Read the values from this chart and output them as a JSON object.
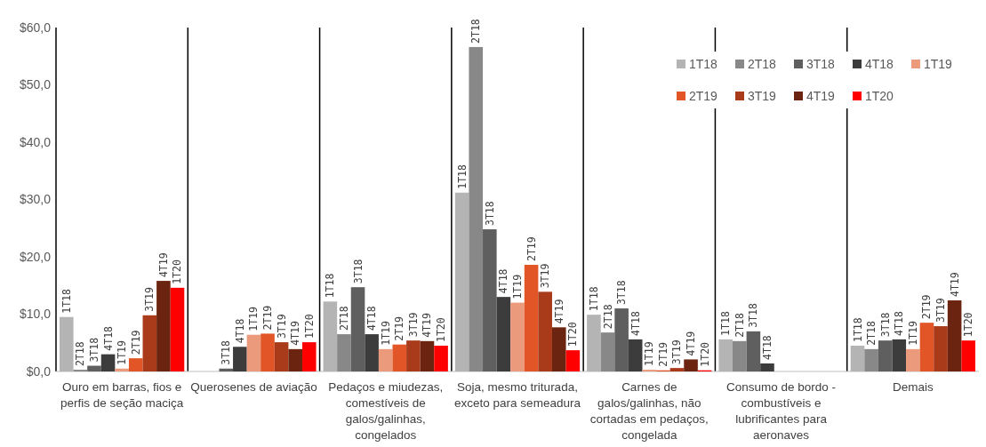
{
  "chart_data": {
    "type": "bar",
    "categories": [
      "Ouro em barras, fios e perfis de seção maciça",
      "Querosenes de aviação",
      "Pedaços e miudezas, comestíveis de galos/galinhas, congelados",
      "Soja, mesmo triturada, exceto para semeadura",
      "Carnes de galos/galinhas, não cortadas em pedaços, congelada",
      "Consumo de bordo - combustíveis e lubrificantes para aeronaves",
      "Demais"
    ],
    "series": [
      {
        "name": "1T18",
        "color": "#b4b4b4",
        "values": [
          9.5,
          null,
          12.2,
          31.2,
          9.9,
          5.6,
          4.5
        ]
      },
      {
        "name": "2T18",
        "color": "#888888",
        "values": [
          0.3,
          null,
          6.5,
          56.6,
          6.8,
          5.3,
          3.9
        ]
      },
      {
        "name": "3T18",
        "color": "#5f5f5f",
        "values": [
          1.0,
          0.5,
          14.7,
          24.8,
          11.0,
          7.0,
          5.4
        ]
      },
      {
        "name": "4T18",
        "color": "#3c3c3c",
        "values": [
          3.0,
          4.3,
          6.5,
          13.0,
          5.6,
          1.4,
          5.6
        ]
      },
      {
        "name": "1T19",
        "color": "#ec9a7c",
        "values": [
          0.5,
          6.4,
          3.9,
          12.0,
          0.3,
          null,
          3.9
        ]
      },
      {
        "name": "2T19",
        "color": "#e15526",
        "values": [
          2.3,
          6.6,
          4.7,
          18.6,
          0.2,
          null,
          8.5
        ]
      },
      {
        "name": "3T19",
        "color": "#a93a1a",
        "values": [
          9.8,
          5.1,
          5.4,
          13.9,
          0.6,
          null,
          7.9
        ]
      },
      {
        "name": "4T19",
        "color": "#6b2410",
        "values": [
          15.8,
          3.9,
          5.3,
          7.7,
          2.1,
          null,
          12.4
        ]
      },
      {
        "name": "1T20",
        "color": "#ff0000",
        "values": [
          14.6,
          5.1,
          4.5,
          3.7,
          0.2,
          null,
          5.4
        ]
      }
    ],
    "ylim": [
      0,
      60
    ],
    "yticks": [
      {
        "value": 0,
        "label": "$0,0"
      },
      {
        "value": 10,
        "label": "$10,0"
      },
      {
        "value": 20,
        "label": "$20,0"
      },
      {
        "value": 30,
        "label": "$30,0"
      },
      {
        "value": 40,
        "label": "$40,0"
      },
      {
        "value": 50,
        "label": "$50,0"
      },
      {
        "value": 60,
        "label": "$60,0"
      }
    ],
    "grid": false,
    "legend": "top right"
  }
}
